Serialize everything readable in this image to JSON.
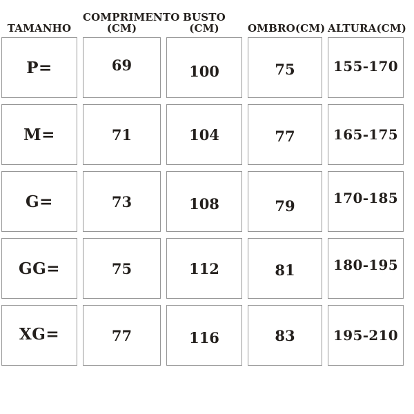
{
  "page": {
    "background_color": "#ffffff",
    "text_color": "#231f1c",
    "cell_border_color": "#969696"
  },
  "table": {
    "headers": [
      "TAMANHO",
      "COMPRIMENTO (CM)",
      "BUSTO (CM)",
      "OMBRO(CM)",
      "ALTURA(CM)"
    ],
    "rows": [
      {
        "cells": [
          "P=",
          "69",
          "100",
          "75",
          "155-170"
        ]
      },
      {
        "cells": [
          "M=",
          "71",
          "104",
          "77",
          "165-175"
        ]
      },
      {
        "cells": [
          "G=",
          "73",
          "108",
          "79",
          "170-185"
        ]
      },
      {
        "cells": [
          "GG=",
          "75",
          "112",
          "81",
          "180-195"
        ]
      },
      {
        "cells": [
          "XG=",
          "77",
          "116",
          "83",
          "195-210"
        ]
      }
    ]
  }
}
